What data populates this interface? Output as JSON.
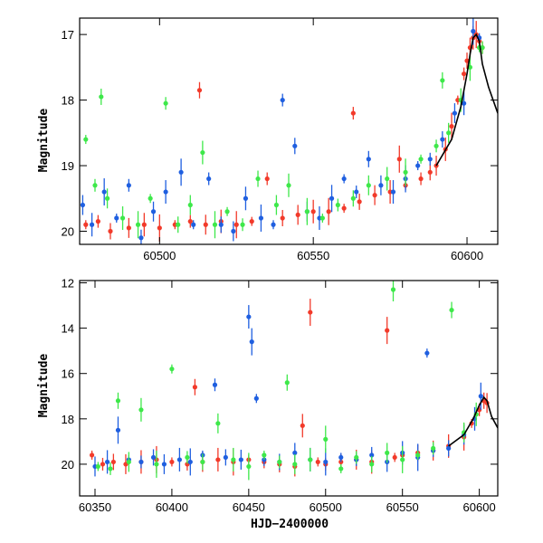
{
  "colors": {
    "blue": "#1f5fe0",
    "green": "#3ee84a",
    "red": "#f23a2a",
    "model": "#000000"
  },
  "chart_data": [
    {
      "type": "scatter",
      "ylabel": "Magnitude",
      "xlabel": "",
      "xlim": [
        60474,
        60610
      ],
      "ylim": [
        20.2,
        16.75
      ],
      "y_inverted": true,
      "xticks": [
        60500,
        60550,
        60600
      ],
      "yticks": [
        17,
        18,
        19,
        20
      ],
      "series": [
        {
          "color": "red",
          "points": [
            [
              60476,
              19.9
            ],
            [
              60480,
              19.85
            ],
            [
              60484,
              20.0
            ],
            [
              60490,
              19.95
            ],
            [
              60495,
              19.9
            ],
            [
              60500,
              19.95
            ],
            [
              60505,
              19.9
            ],
            [
              60510,
              19.85
            ],
            [
              60513,
              17.85
            ],
            [
              60515,
              19.9
            ],
            [
              60520,
              19.85
            ],
            [
              60525,
              19.9
            ],
            [
              60530,
              19.85
            ],
            [
              60535,
              19.2
            ],
            [
              60540,
              19.8
            ],
            [
              60545,
              19.75
            ],
            [
              60550,
              19.7
            ],
            [
              60555,
              19.7
            ],
            [
              60560,
              19.65
            ],
            [
              60563,
              18.2
            ],
            [
              60565,
              19.55
            ],
            [
              60570,
              19.45
            ],
            [
              60575,
              19.4
            ],
            [
              60578,
              18.9
            ],
            [
              60580,
              19.3
            ],
            [
              60585,
              19.2
            ],
            [
              60588,
              19.1
            ],
            [
              60590,
              19.0
            ],
            [
              60593,
              18.75
            ],
            [
              60595,
              18.4
            ],
            [
              60597,
              18.0
            ],
            [
              60599,
              17.6
            ],
            [
              60600,
              17.4
            ],
            [
              60601,
              17.2
            ],
            [
              60602,
              17.05
            ],
            [
              60603,
              17.0
            ],
            [
              60604,
              17.1
            ],
            [
              60605,
              17.2
            ]
          ]
        },
        {
          "color": "blue",
          "points": [
            [
              60475,
              19.6
            ],
            [
              60478,
              19.9
            ],
            [
              60482,
              19.4
            ],
            [
              60486,
              19.8
            ],
            [
              60490,
              19.3
            ],
            [
              60494,
              20.1
            ],
            [
              60498,
              19.7
            ],
            [
              60502,
              19.4
            ],
            [
              60507,
              19.1
            ],
            [
              60511,
              19.9
            ],
            [
              60516,
              19.2
            ],
            [
              60520,
              19.9
            ],
            [
              60524,
              20.0
            ],
            [
              60528,
              19.5
            ],
            [
              60533,
              19.8
            ],
            [
              60537,
              19.9
            ],
            [
              60540,
              18.0
            ],
            [
              60544,
              18.7
            ],
            [
              60548,
              19.7
            ],
            [
              60552,
              19.8
            ],
            [
              60556,
              19.5
            ],
            [
              60560,
              19.2
            ],
            [
              60564,
              19.4
            ],
            [
              60568,
              18.9
            ],
            [
              60572,
              19.3
            ],
            [
              60576,
              19.4
            ],
            [
              60580,
              19.2
            ],
            [
              60584,
              19.0
            ],
            [
              60588,
              18.9
            ],
            [
              60592,
              18.6
            ],
            [
              60596,
              18.2
            ],
            [
              60599,
              18.05
            ],
            [
              60602,
              16.95
            ],
            [
              60604,
              17.05
            ]
          ]
        },
        {
          "color": "green",
          "points": [
            [
              60476,
              18.6
            ],
            [
              60479,
              19.3
            ],
            [
              60481,
              17.95
            ],
            [
              60483,
              19.5
            ],
            [
              60488,
              19.8
            ],
            [
              60493,
              19.9
            ],
            [
              60497,
              19.5
            ],
            [
              60502,
              18.05
            ],
            [
              60506,
              19.9
            ],
            [
              60510,
              19.6
            ],
            [
              60514,
              18.8
            ],
            [
              60518,
              19.9
            ],
            [
              60522,
              19.7
            ],
            [
              60527,
              19.9
            ],
            [
              60532,
              19.2
            ],
            [
              60538,
              19.6
            ],
            [
              60542,
              19.3
            ],
            [
              60548,
              19.7
            ],
            [
              60553,
              19.8
            ],
            [
              60558,
              19.6
            ],
            [
              60563,
              19.5
            ],
            [
              60568,
              19.3
            ],
            [
              60574,
              19.2
            ],
            [
              60580,
              19.1
            ],
            [
              60585,
              18.9
            ],
            [
              60590,
              18.7
            ],
            [
              60592,
              17.7
            ],
            [
              60594,
              18.5
            ],
            [
              60598,
              18.0
            ],
            [
              60601,
              17.5
            ],
            [
              60604,
              17.2
            ],
            [
              60605,
              17.2
            ]
          ]
        }
      ],
      "model_line": {
        "color": "model",
        "points": [
          [
            60590,
            19.0
          ],
          [
            60595,
            18.6
          ],
          [
            60598,
            18.1
          ],
          [
            60600,
            17.6
          ],
          [
            60601,
            17.3
          ],
          [
            60602,
            17.05
          ],
          [
            60603,
            17.0
          ],
          [
            60604,
            17.1
          ],
          [
            60605,
            17.45
          ],
          [
            60607,
            17.8
          ],
          [
            60610,
            18.2
          ]
        ]
      }
    },
    {
      "type": "scatter",
      "xlabel": "HJD−2400000",
      "ylabel": "Magnitude",
      "xlim": [
        60340,
        60612
      ],
      "ylim": [
        21.4,
        11.9
      ],
      "y_inverted": true,
      "xticks": [
        60350,
        60400,
        60450,
        60500,
        60550,
        60600
      ],
      "yticks": [
        12,
        14,
        16,
        18,
        20
      ],
      "series": [
        {
          "color": "red",
          "points": [
            [
              60348,
              19.6
            ],
            [
              60355,
              20.0
            ],
            [
              60362,
              19.9
            ],
            [
              60370,
              20.0
            ],
            [
              60380,
              19.9
            ],
            [
              60390,
              19.8
            ],
            [
              60400,
              19.9
            ],
            [
              60410,
              20.0
            ],
            [
              60415,
              16.6
            ],
            [
              60420,
              19.9
            ],
            [
              60430,
              19.8
            ],
            [
              60440,
              19.9
            ],
            [
              60450,
              19.8
            ],
            [
              60460,
              19.9
            ],
            [
              60470,
              20.0
            ],
            [
              60480,
              20.1
            ],
            [
              60485,
              18.3
            ],
            [
              60490,
              13.3
            ],
            [
              60495,
              19.9
            ],
            [
              60500,
              20.0
            ],
            [
              60510,
              19.9
            ],
            [
              60520,
              19.8
            ],
            [
              60530,
              19.9
            ],
            [
              60540,
              14.1
            ],
            [
              60545,
              19.7
            ],
            [
              60550,
              19.6
            ],
            [
              60560,
              19.5
            ],
            [
              60570,
              19.4
            ],
            [
              60580,
              19.2
            ],
            [
              60590,
              18.8
            ],
            [
              60595,
              18.2
            ],
            [
              60600,
              17.6
            ],
            [
              60603,
              17.2
            ],
            [
              60605,
              17.3
            ]
          ]
        },
        {
          "color": "blue",
          "points": [
            [
              60350,
              20.1
            ],
            [
              60358,
              19.9
            ],
            [
              60365,
              18.5
            ],
            [
              60372,
              19.8
            ],
            [
              60380,
              19.9
            ],
            [
              60388,
              19.7
            ],
            [
              60395,
              20.0
            ],
            [
              60405,
              19.8
            ],
            [
              60412,
              19.9
            ],
            [
              60420,
              19.6
            ],
            [
              60428,
              16.5
            ],
            [
              60435,
              19.7
            ],
            [
              60445,
              19.8
            ],
            [
              60450,
              13.5
            ],
            [
              60452,
              14.6
            ],
            [
              60455,
              17.1
            ],
            [
              60460,
              19.8
            ],
            [
              60470,
              19.9
            ],
            [
              60480,
              19.5
            ],
            [
              60490,
              19.8
            ],
            [
              60500,
              19.9
            ],
            [
              60510,
              19.7
            ],
            [
              60520,
              19.8
            ],
            [
              60530,
              19.6
            ],
            [
              60540,
              19.9
            ],
            [
              60550,
              19.5
            ],
            [
              60560,
              19.7
            ],
            [
              60566,
              15.1
            ],
            [
              60570,
              19.4
            ],
            [
              60580,
              19.3
            ],
            [
              60590,
              18.7
            ],
            [
              60597,
              18.0
            ],
            [
              60601,
              17.0
            ]
          ]
        },
        {
          "color": "green",
          "points": [
            [
              60352,
              20.1
            ],
            [
              60360,
              20.2
            ],
            [
              60365,
              17.2
            ],
            [
              60372,
              19.9
            ],
            [
              60380,
              17.6
            ],
            [
              60390,
              20.0
            ],
            [
              60400,
              15.8
            ],
            [
              60410,
              19.7
            ],
            [
              60420,
              19.9
            ],
            [
              60430,
              18.2
            ],
            [
              60440,
              19.8
            ],
            [
              60450,
              20.1
            ],
            [
              60460,
              19.6
            ],
            [
              60470,
              19.9
            ],
            [
              60475,
              16.4
            ],
            [
              60480,
              20.0
            ],
            [
              60490,
              19.8
            ],
            [
              60500,
              18.9
            ],
            [
              60510,
              20.2
            ],
            [
              60520,
              19.7
            ],
            [
              60530,
              20.0
            ],
            [
              60540,
              19.5
            ],
            [
              60544,
              12.3
            ],
            [
              60550,
              19.8
            ],
            [
              60560,
              19.6
            ],
            [
              60570,
              19.3
            ],
            [
              60582,
              13.2
            ],
            [
              60590,
              18.6
            ],
            [
              60598,
              17.8
            ]
          ]
        }
      ],
      "model_line": {
        "color": "model",
        "points": [
          [
            60580,
            19.2
          ],
          [
            60590,
            18.7
          ],
          [
            60596,
            18.0
          ],
          [
            60600,
            17.4
          ],
          [
            60603,
            17.05
          ],
          [
            60605,
            17.2
          ],
          [
            60608,
            17.9
          ],
          [
            60612,
            18.4
          ]
        ]
      }
    }
  ]
}
